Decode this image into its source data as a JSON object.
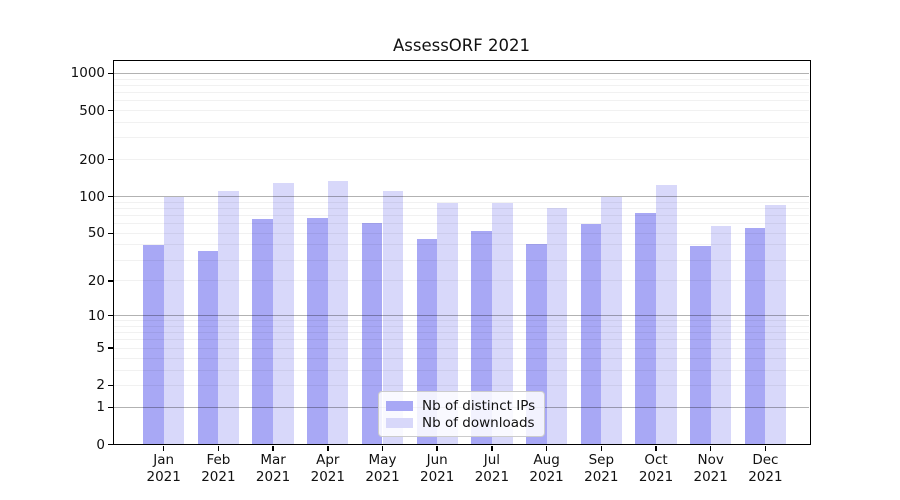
{
  "title": "AssessORF 2021",
  "chart_data": {
    "type": "bar",
    "title": "AssessORF 2021",
    "categories": [
      "Jan 2021",
      "Feb 2021",
      "Mar 2021",
      "Apr 2021",
      "May 2021",
      "Jun 2021",
      "Jul 2021",
      "Aug 2021",
      "Sep 2021",
      "Oct 2021",
      "Nov 2021",
      "Dec 2021"
    ],
    "months": [
      "Jan",
      "Feb",
      "Mar",
      "Apr",
      "May",
      "Jun",
      "Jul",
      "Aug",
      "Sep",
      "Oct",
      "Nov",
      "Dec"
    ],
    "year": "2021",
    "series": [
      {
        "name": "Nb of distinct IPs",
        "color": "#a8a8f5",
        "values": [
          40,
          36,
          66,
          67,
          61,
          45,
          52,
          41,
          60,
          73,
          39,
          55
        ]
      },
      {
        "name": "Nb of downloads",
        "color": "#d8d8fa",
        "values": [
          100,
          110,
          130,
          135,
          112,
          88,
          88,
          80,
          100,
          125,
          57,
          85
        ]
      }
    ],
    "xlabel": "",
    "ylabel": "",
    "y_axis": {
      "scale": "log1p",
      "tick_values": [
        0,
        1,
        2,
        5,
        10,
        20,
        50,
        100,
        200,
        500,
        1000
      ],
      "major_grid_values": [
        1,
        10,
        100,
        1000
      ],
      "ylim": [
        0,
        1250
      ]
    },
    "grid": true,
    "legend_position": "bottom-center"
  },
  "colors": {
    "background": "#ffffff",
    "bar_distinct_ips": "#a8a8f5",
    "bar_downloads": "#d8d8fa",
    "major_grid": "#b3b3b3",
    "minor_grid": "#ededed",
    "axis": "#000000",
    "legend_border": "#cccccc"
  }
}
